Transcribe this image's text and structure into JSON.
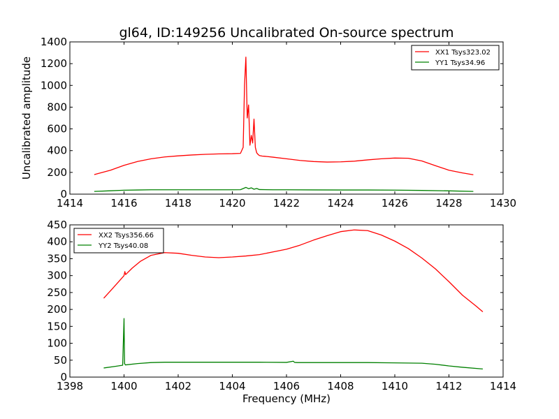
{
  "chart_data": [
    {
      "type": "line",
      "title": "gl64, ID:149256 Uncalibrated On-source spectrum",
      "xlabel": "",
      "ylabel": "Uncalibrated amplitude",
      "xlim": [
        1414,
        1430
      ],
      "ylim": [
        0,
        1400
      ],
      "xticks": [
        "1414",
        "1416",
        "1418",
        "1420",
        "1422",
        "1424",
        "1426",
        "1428",
        "1430"
      ],
      "yticks": [
        "0",
        "200",
        "400",
        "600",
        "800",
        "1000",
        "1200",
        "1400"
      ],
      "legend_position": "top-right",
      "series": [
        {
          "name": "XX1 Tsys323.02",
          "color": "#ff0000",
          "x": [
            1414.9,
            1415.5,
            1416,
            1416.5,
            1417,
            1417.5,
            1418,
            1418.5,
            1419,
            1419.5,
            1420,
            1420.3,
            1420.4,
            1420.45,
            1420.5,
            1420.55,
            1420.6,
            1420.65,
            1420.7,
            1420.75,
            1420.8,
            1420.85,
            1420.9,
            1420.95,
            1421,
            1421.1,
            1421.2,
            1421.5,
            1422,
            1422.5,
            1423,
            1423.5,
            1424,
            1424.5,
            1425,
            1425.5,
            1426,
            1426.5,
            1427,
            1427.5,
            1428,
            1428.5,
            1428.9
          ],
          "values": [
            180,
            220,
            265,
            300,
            325,
            342,
            352,
            360,
            366,
            370,
            372,
            375,
            430,
            1000,
            1260,
            700,
            820,
            450,
            540,
            470,
            690,
            430,
            380,
            365,
            355,
            350,
            348,
            340,
            325,
            310,
            300,
            295,
            297,
            303,
            315,
            325,
            332,
            330,
            305,
            262,
            220,
            195,
            178
          ]
        },
        {
          "name": "YY1 Tsys34.96",
          "color": "#008000",
          "x": [
            1414.9,
            1415.5,
            1416,
            1416.5,
            1417,
            1418,
            1419,
            1420,
            1420.3,
            1420.5,
            1420.6,
            1420.7,
            1420.8,
            1420.9,
            1421,
            1421.5,
            1422,
            1423,
            1424,
            1425,
            1426,
            1427,
            1428,
            1428.9
          ],
          "values": [
            25,
            31,
            36,
            38,
            40,
            40,
            40,
            40,
            41,
            62,
            50,
            58,
            45,
            52,
            42,
            40,
            40,
            39,
            38,
            38,
            37,
            34,
            30,
            25
          ]
        }
      ]
    },
    {
      "type": "line",
      "title": "",
      "xlabel": "Frequency (MHz)",
      "ylabel": "",
      "xlim": [
        1398,
        1414
      ],
      "ylim": [
        0,
        450
      ],
      "xticks": [
        "1398",
        "1400",
        "1402",
        "1404",
        "1406",
        "1408",
        "1410",
        "1412",
        "1414"
      ],
      "yticks": [
        "0",
        "50",
        "100",
        "150",
        "200",
        "250",
        "300",
        "350",
        "400",
        "450"
      ],
      "legend_position": "top-left",
      "series": [
        {
          "name": "XX2 Tsys356.66",
          "color": "#ff0000",
          "x": [
            1399.25,
            1399.5,
            1399.8,
            1400,
            1400.03,
            1400.06,
            1400.3,
            1400.6,
            1401,
            1401.5,
            1402,
            1402.5,
            1403,
            1403.5,
            1404,
            1404.5,
            1405,
            1405.5,
            1406,
            1406.5,
            1407,
            1407.5,
            1408,
            1408.5,
            1409,
            1409.5,
            1410,
            1410.5,
            1411,
            1411.5,
            1412,
            1412.5,
            1413,
            1413.25
          ],
          "values": [
            233,
            255,
            282,
            300,
            312,
            303,
            322,
            342,
            360,
            368,
            366,
            360,
            355,
            353,
            355,
            358,
            362,
            370,
            378,
            390,
            405,
            418,
            430,
            435,
            433,
            420,
            402,
            380,
            352,
            320,
            282,
            242,
            210,
            193
          ]
        },
        {
          "name": "YY2 Tsys40.08",
          "color": "#008000",
          "x": [
            1399.25,
            1399.7,
            1399.95,
            1400,
            1400.02,
            1400.05,
            1400.5,
            1401,
            1401.5,
            1402,
            1403,
            1404,
            1405,
            1406,
            1406.25,
            1406.3,
            1406.4,
            1407,
            1408,
            1409,
            1410,
            1411,
            1411.5,
            1412,
            1412.5,
            1413.25
          ],
          "values": [
            27,
            32,
            35,
            173,
            40,
            36,
            40,
            43,
            44,
            44,
            44,
            44,
            44,
            43.5,
            47,
            43.5,
            43,
            43,
            43,
            43,
            42,
            41,
            38,
            33,
            29,
            24
          ]
        }
      ]
    }
  ]
}
